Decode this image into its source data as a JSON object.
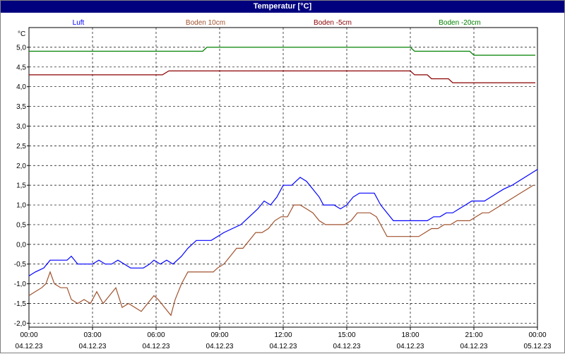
{
  "chart_data": {
    "type": "line",
    "title": "Temperatur [°C]",
    "ylabel": "°C",
    "ylim": [
      -2.1,
      5.5
    ],
    "y_ticks": [
      "5,0",
      "4,5",
      "4,0",
      "3,5",
      "3,0",
      "2,5",
      "2,0",
      "1,5",
      "1,0",
      "0,5",
      "0,0",
      "-0,5",
      "-1,0",
      "-1,5",
      "-2,0"
    ],
    "y_tick_values": [
      5.0,
      4.5,
      4.0,
      3.5,
      3.0,
      2.5,
      2.0,
      1.5,
      1.0,
      0.5,
      0.0,
      -0.5,
      -1.0,
      -1.5,
      -2.0
    ],
    "xlim": [
      0,
      24
    ],
    "x_ticks": [
      {
        "hour": 0,
        "time": "00:00",
        "date": "04.12.23"
      },
      {
        "hour": 3,
        "time": "03:00",
        "date": "04.12.23"
      },
      {
        "hour": 6,
        "time": "06:00",
        "date": "04.12.23"
      },
      {
        "hour": 9,
        "time": "09:00",
        "date": "04.12.23"
      },
      {
        "hour": 12,
        "time": "12:00",
        "date": "04.12.23"
      },
      {
        "hour": 15,
        "time": "15:00",
        "date": "04.12.23"
      },
      {
        "hour": 18,
        "time": "18:00",
        "date": "04.12.23"
      },
      {
        "hour": 21,
        "time": "21:00",
        "date": "04.12.23"
      },
      {
        "hour": 24,
        "time": "00:00",
        "date": "05.12.23"
      }
    ],
    "grid": true,
    "legend_position": "top",
    "series": [
      {
        "name": "Luft",
        "color": "#0000ff",
        "points": [
          [
            0,
            -0.8
          ],
          [
            0.3,
            -0.7
          ],
          [
            0.7,
            -0.6
          ],
          [
            1.0,
            -0.4
          ],
          [
            1.5,
            -0.4
          ],
          [
            1.8,
            -0.4
          ],
          [
            2.0,
            -0.3
          ],
          [
            2.3,
            -0.5
          ],
          [
            2.7,
            -0.5
          ],
          [
            3.0,
            -0.5
          ],
          [
            3.3,
            -0.4
          ],
          [
            3.6,
            -0.5
          ],
          [
            3.9,
            -0.5
          ],
          [
            4.2,
            -0.4
          ],
          [
            4.5,
            -0.5
          ],
          [
            4.8,
            -0.6
          ],
          [
            5.1,
            -0.6
          ],
          [
            5.4,
            -0.6
          ],
          [
            5.7,
            -0.5
          ],
          [
            5.9,
            -0.4
          ],
          [
            6.2,
            -0.5
          ],
          [
            6.5,
            -0.4
          ],
          [
            6.8,
            -0.5
          ],
          [
            7.2,
            -0.3
          ],
          [
            7.5,
            -0.1
          ],
          [
            7.9,
            0.1
          ],
          [
            8.3,
            0.1
          ],
          [
            8.6,
            0.1
          ],
          [
            8.9,
            0.2
          ],
          [
            9.2,
            0.3
          ],
          [
            9.6,
            0.4
          ],
          [
            10.0,
            0.5
          ],
          [
            10.4,
            0.7
          ],
          [
            10.8,
            0.9
          ],
          [
            11.1,
            1.1
          ],
          [
            11.4,
            1.0
          ],
          [
            11.7,
            1.2
          ],
          [
            12.0,
            1.5
          ],
          [
            12.4,
            1.5
          ],
          [
            12.8,
            1.7
          ],
          [
            13.1,
            1.6
          ],
          [
            13.4,
            1.4
          ],
          [
            13.7,
            1.2
          ],
          [
            13.9,
            1.0
          ],
          [
            14.2,
            1.0
          ],
          [
            14.4,
            1.0
          ],
          [
            14.7,
            0.9
          ],
          [
            15.0,
            1.0
          ],
          [
            15.3,
            1.2
          ],
          [
            15.6,
            1.3
          ],
          [
            16.0,
            1.3
          ],
          [
            16.3,
            1.3
          ],
          [
            16.6,
            1.0
          ],
          [
            16.9,
            0.8
          ],
          [
            17.2,
            0.6
          ],
          [
            17.6,
            0.6
          ],
          [
            17.9,
            0.6
          ],
          [
            18.2,
            0.6
          ],
          [
            18.5,
            0.6
          ],
          [
            18.8,
            0.6
          ],
          [
            19.1,
            0.7
          ],
          [
            19.4,
            0.7
          ],
          [
            19.7,
            0.8
          ],
          [
            20.0,
            0.8
          ],
          [
            20.3,
            0.9
          ],
          [
            20.6,
            1.0
          ],
          [
            20.9,
            1.1
          ],
          [
            21.2,
            1.1
          ],
          [
            21.5,
            1.1
          ],
          [
            21.8,
            1.2
          ],
          [
            22.1,
            1.3
          ],
          [
            22.4,
            1.4
          ],
          [
            22.8,
            1.5
          ],
          [
            23.1,
            1.6
          ],
          [
            23.4,
            1.7
          ],
          [
            23.7,
            1.8
          ],
          [
            24.0,
            1.9
          ]
        ]
      },
      {
        "name": "Boden 10cm",
        "color": "#a0522d",
        "points": [
          [
            0,
            -1.3
          ],
          [
            0.3,
            -1.2
          ],
          [
            0.6,
            -1.1
          ],
          [
            0.8,
            -1.0
          ],
          [
            1.0,
            -0.7
          ],
          [
            1.2,
            -1.0
          ],
          [
            1.5,
            -1.1
          ],
          [
            1.8,
            -1.1
          ],
          [
            2.0,
            -1.4
          ],
          [
            2.3,
            -1.5
          ],
          [
            2.6,
            -1.4
          ],
          [
            2.9,
            -1.5
          ],
          [
            3.2,
            -1.2
          ],
          [
            3.5,
            -1.5
          ],
          [
            3.8,
            -1.3
          ],
          [
            4.1,
            -1.1
          ],
          [
            4.4,
            -1.6
          ],
          [
            4.7,
            -1.5
          ],
          [
            5.0,
            -1.6
          ],
          [
            5.3,
            -1.7
          ],
          [
            5.6,
            -1.5
          ],
          [
            5.9,
            -1.3
          ],
          [
            6.1,
            -1.4
          ],
          [
            6.4,
            -1.6
          ],
          [
            6.7,
            -1.8
          ],
          [
            6.9,
            -1.4
          ],
          [
            7.2,
            -1.0
          ],
          [
            7.5,
            -0.7
          ],
          [
            7.8,
            -0.7
          ],
          [
            8.1,
            -0.7
          ],
          [
            8.4,
            -0.7
          ],
          [
            8.7,
            -0.7
          ],
          [
            8.9,
            -0.6
          ],
          [
            9.2,
            -0.5
          ],
          [
            9.5,
            -0.3
          ],
          [
            9.8,
            -0.1
          ],
          [
            10.1,
            -0.1
          ],
          [
            10.4,
            0.1
          ],
          [
            10.7,
            0.3
          ],
          [
            11.0,
            0.3
          ],
          [
            11.3,
            0.4
          ],
          [
            11.6,
            0.6
          ],
          [
            11.9,
            0.7
          ],
          [
            12.2,
            0.7
          ],
          [
            12.5,
            1.0
          ],
          [
            12.8,
            1.0
          ],
          [
            13.1,
            0.9
          ],
          [
            13.4,
            0.8
          ],
          [
            13.7,
            0.6
          ],
          [
            14.0,
            0.5
          ],
          [
            14.3,
            0.5
          ],
          [
            14.6,
            0.5
          ],
          [
            14.9,
            0.5
          ],
          [
            15.2,
            0.6
          ],
          [
            15.5,
            0.8
          ],
          [
            15.8,
            0.8
          ],
          [
            16.1,
            0.8
          ],
          [
            16.4,
            0.7
          ],
          [
            16.7,
            0.4
          ],
          [
            16.9,
            0.2
          ],
          [
            17.2,
            0.2
          ],
          [
            17.5,
            0.2
          ],
          [
            17.8,
            0.2
          ],
          [
            18.1,
            0.2
          ],
          [
            18.4,
            0.2
          ],
          [
            18.7,
            0.3
          ],
          [
            19.0,
            0.4
          ],
          [
            19.3,
            0.4
          ],
          [
            19.6,
            0.5
          ],
          [
            19.9,
            0.5
          ],
          [
            20.2,
            0.6
          ],
          [
            20.5,
            0.6
          ],
          [
            20.8,
            0.6
          ],
          [
            21.1,
            0.7
          ],
          [
            21.4,
            0.8
          ],
          [
            21.7,
            0.8
          ],
          [
            22.0,
            0.9
          ],
          [
            22.3,
            1.0
          ],
          [
            22.6,
            1.1
          ],
          [
            22.9,
            1.2
          ],
          [
            23.2,
            1.3
          ],
          [
            23.5,
            1.4
          ],
          [
            23.8,
            1.5
          ]
        ]
      },
      {
        "name": "Boden -5cm",
        "color": "#8b0000",
        "points": [
          [
            0,
            4.3
          ],
          [
            6.3,
            4.3
          ],
          [
            6.6,
            4.4
          ],
          [
            18.0,
            4.4
          ],
          [
            18.2,
            4.3
          ],
          [
            18.8,
            4.3
          ],
          [
            19.0,
            4.2
          ],
          [
            19.8,
            4.2
          ],
          [
            20.0,
            4.1
          ],
          [
            23.9,
            4.1
          ]
        ]
      },
      {
        "name": "Boden -20cm",
        "color": "#008000",
        "points": [
          [
            0,
            4.9
          ],
          [
            8.2,
            4.9
          ],
          [
            8.4,
            5.0
          ],
          [
            18.0,
            5.0
          ],
          [
            18.2,
            4.9
          ],
          [
            20.8,
            4.9
          ],
          [
            21.0,
            4.8
          ],
          [
            23.9,
            4.8
          ]
        ]
      }
    ]
  }
}
